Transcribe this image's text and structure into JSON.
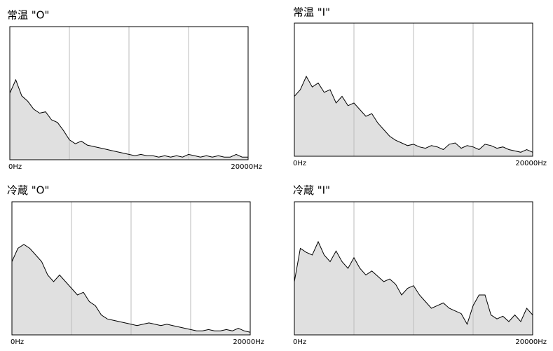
{
  "chart_data": [
    {
      "type": "area",
      "title": "常温 \"O\"",
      "color": "#e0e0e0",
      "line_color": "#000000",
      "x": [
        0,
        500,
        1000,
        1500,
        2000,
        2500,
        3000,
        3500,
        4000,
        4500,
        5000,
        5500,
        6000,
        6500,
        7000,
        7500,
        8000,
        8500,
        9000,
        9500,
        10000,
        10500,
        11000,
        11500,
        12000,
        12500,
        13000,
        13500,
        14000,
        14500,
        15000,
        15500,
        16000,
        16500,
        17000,
        17500,
        18000,
        18500,
        19000,
        19500,
        20000
      ],
      "values": [
        50,
        60,
        48,
        44,
        38,
        35,
        36,
        30,
        28,
        22,
        15,
        12,
        14,
        11,
        10,
        9,
        8,
        7,
        6,
        5,
        4,
        3,
        4,
        3,
        3,
        2,
        3,
        2,
        3,
        2,
        4,
        3,
        2,
        3,
        2,
        3,
        2,
        2,
        4,
        2,
        2
      ],
      "xlim": [
        0,
        20000
      ],
      "ylim": [
        0,
        100
      ],
      "xticks": [
        {
          "value": 0,
          "label": "0Hz"
        },
        {
          "value": 20000,
          "label": "20000Hz"
        }
      ],
      "xgrid": [
        5000,
        10000,
        15000
      ]
    },
    {
      "type": "area",
      "title": "常温 \"I\"",
      "color": "#e0e0e0",
      "line_color": "#000000",
      "x": [
        0,
        500,
        1000,
        1500,
        2000,
        2500,
        3000,
        3500,
        4000,
        4500,
        5000,
        5500,
        6000,
        6500,
        7000,
        7500,
        8000,
        8500,
        9000,
        9500,
        10000,
        10500,
        11000,
        11500,
        12000,
        12500,
        13000,
        13500,
        14000,
        14500,
        15000,
        15500,
        16000,
        16500,
        17000,
        17500,
        18000,
        18500,
        19000,
        19500,
        20000
      ],
      "values": [
        45,
        50,
        60,
        52,
        55,
        48,
        50,
        40,
        45,
        38,
        40,
        35,
        30,
        32,
        25,
        20,
        15,
        12,
        10,
        8,
        9,
        7,
        6,
        8,
        7,
        5,
        9,
        10,
        6,
        8,
        7,
        5,
        9,
        8,
        6,
        7,
        5,
        4,
        3,
        5,
        3
      ],
      "xlim": [
        0,
        20000
      ],
      "ylim": [
        0,
        100
      ],
      "xticks": [
        {
          "value": 0,
          "label": "0Hz"
        },
        {
          "value": 20000,
          "label": "20000Hz"
        }
      ],
      "xgrid": [
        5000,
        10000,
        15000
      ]
    },
    {
      "type": "area",
      "title": "冷蔵 \"O\"",
      "color": "#e0e0e0",
      "line_color": "#000000",
      "x": [
        0,
        500,
        1000,
        1500,
        2000,
        2500,
        3000,
        3500,
        4000,
        4500,
        5000,
        5500,
        6000,
        6500,
        7000,
        7500,
        8000,
        8500,
        9000,
        9500,
        10000,
        10500,
        11000,
        11500,
        12000,
        12500,
        13000,
        13500,
        14000,
        14500,
        15000,
        15500,
        16000,
        16500,
        17000,
        17500,
        18000,
        18500,
        19000,
        19500,
        20000
      ],
      "values": [
        55,
        65,
        68,
        65,
        60,
        55,
        45,
        40,
        45,
        40,
        35,
        30,
        32,
        25,
        22,
        15,
        12,
        11,
        10,
        9,
        8,
        7,
        8,
        9,
        8,
        7,
        8,
        7,
        6,
        5,
        4,
        3,
        3,
        4,
        3,
        3,
        4,
        3,
        5,
        3,
        2
      ],
      "xlim": [
        0,
        20000
      ],
      "ylim": [
        0,
        100
      ],
      "xticks": [
        {
          "value": 0,
          "label": "0Hz"
        },
        {
          "value": 20000,
          "label": "20000Hz"
        }
      ],
      "xgrid": [
        5000,
        10000,
        15000
      ]
    },
    {
      "type": "area",
      "title": "冷蔵 \"I\"",
      "color": "#e0e0e0",
      "line_color": "#000000",
      "x": [
        0,
        500,
        1000,
        1500,
        2000,
        2500,
        3000,
        3500,
        4000,
        4500,
        5000,
        5500,
        6000,
        6500,
        7000,
        7500,
        8000,
        8500,
        9000,
        9500,
        10000,
        10500,
        11000,
        11500,
        12000,
        12500,
        13000,
        13500,
        14000,
        14500,
        15000,
        15500,
        16000,
        16500,
        17000,
        17500,
        18000,
        18500,
        19000,
        19500,
        20000
      ],
      "values": [
        40,
        65,
        62,
        60,
        70,
        60,
        55,
        63,
        55,
        50,
        58,
        50,
        45,
        48,
        44,
        40,
        42,
        38,
        30,
        35,
        37,
        30,
        25,
        20,
        22,
        24,
        20,
        18,
        16,
        8,
        22,
        30,
        30,
        15,
        12,
        14,
        10,
        15,
        10,
        20,
        15
      ],
      "xlim": [
        0,
        20000
      ],
      "ylim": [
        0,
        100
      ],
      "xticks": [
        {
          "value": 0,
          "label": "0Hz"
        },
        {
          "value": 20000,
          "label": "20000Hz"
        }
      ],
      "xgrid": [
        5000,
        10000,
        15000
      ]
    }
  ]
}
